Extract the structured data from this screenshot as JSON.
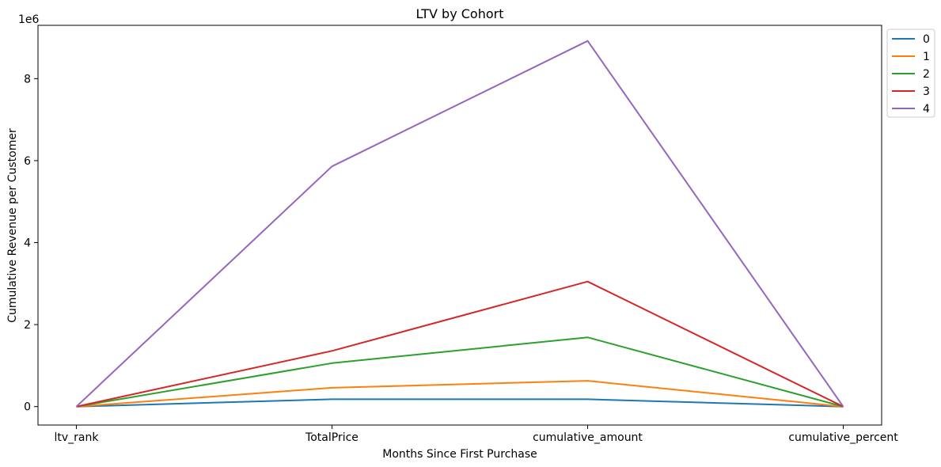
{
  "chart_data": {
    "type": "line",
    "title": "LTV by Cohort",
    "xlabel": "Months Since First Purchase",
    "ylabel": "Cumulative Revenue per Customer",
    "y_offset_label": "1e6",
    "categories": [
      "ltv_rank",
      "TotalPrice",
      "cumulative_amount",
      "cumulative_percent"
    ],
    "ylim": [
      -0.45,
      9.3
    ],
    "y_ticks": [
      0,
      2,
      4,
      6,
      8
    ],
    "y_tick_labels": [
      "0",
      "2",
      "4",
      "6",
      "8"
    ],
    "y_scale_note": "values in millions (1e6)",
    "grid": false,
    "legend_position": "upper-right, outside axes",
    "series": [
      {
        "name": "0",
        "color": "#1f77b4",
        "values": [
          0.0,
          0.18,
          0.18,
          0.0
        ]
      },
      {
        "name": "1",
        "color": "#ff7f0e",
        "values": [
          0.0,
          0.46,
          0.63,
          0.0
        ]
      },
      {
        "name": "2",
        "color": "#2ca02c",
        "values": [
          0.0,
          1.06,
          1.69,
          0.0
        ]
      },
      {
        "name": "3",
        "color": "#d62728",
        "values": [
          0.0,
          1.36,
          3.05,
          0.0
        ]
      },
      {
        "name": "4",
        "color": "#9467bd",
        "values": [
          0.0,
          5.86,
          8.92,
          0.0
        ]
      }
    ]
  }
}
